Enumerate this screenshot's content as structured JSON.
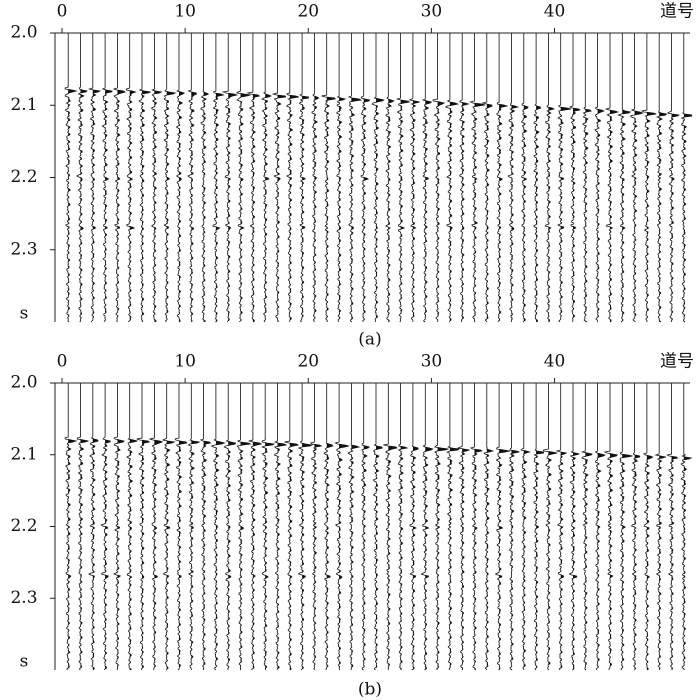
{
  "chart_data": [
    {
      "type": "wiggle",
      "caption": "(a)",
      "xlabel": "道号",
      "ylabel": "s",
      "xlim": [
        0,
        51
      ],
      "xticks": [
        0,
        10,
        20,
        30,
        40
      ],
      "ylim": [
        2,
        2.4
      ],
      "yticks": [
        {
          "value": 2,
          "label": "2.0"
        },
        {
          "value": 2.1,
          "label": "2.1"
        },
        {
          "value": 2.2,
          "label": "2.2"
        },
        {
          "value": 2.3,
          "label": "2.3"
        }
      ]
    },
    {
      "type": "wiggle",
      "caption": "(b)",
      "xlabel": "道号",
      "ylabel": "s",
      "xlim": [
        0,
        51
      ],
      "xticks": [
        0,
        10,
        20,
        30,
        40
      ],
      "ylim": [
        2,
        2.4
      ],
      "yticks": [
        {
          "value": 2,
          "label": "2.0"
        },
        {
          "value": 2.1,
          "label": "2.1"
        },
        {
          "value": 2.2,
          "label": "2.2"
        },
        {
          "value": 2.3,
          "label": "2.3"
        }
      ]
    }
  ]
}
